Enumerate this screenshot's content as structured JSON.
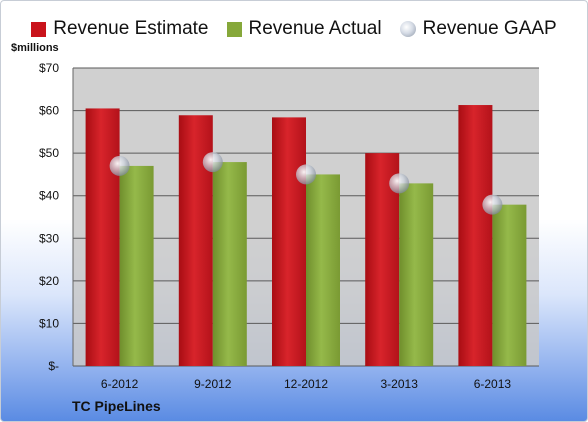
{
  "legend": {
    "estimate": "Revenue Estimate",
    "actual": "Revenue Actual",
    "gaap": "Revenue GAAP"
  },
  "unit_label": "$millions",
  "company": "TC PipeLines",
  "colors": {
    "estimate": "#c9131b",
    "actual": "#86a83a",
    "gaap": "#b9c1ce",
    "plot_background": "#c8c8c8"
  },
  "chart_data": {
    "type": "bar",
    "title": "",
    "xlabel": "",
    "ylabel": "$millions",
    "categories": [
      "6-2012",
      "9-2012",
      "12-2012",
      "3-2013",
      "6-2013"
    ],
    "series": [
      {
        "name": "Revenue Estimate",
        "type": "bar",
        "values": [
          60.5,
          58.9,
          58.4,
          50.0,
          61.3
        ]
      },
      {
        "name": "Revenue Actual",
        "type": "bar",
        "values": [
          47.0,
          47.9,
          45.0,
          42.9,
          37.9
        ]
      },
      {
        "name": "Revenue GAAP",
        "type": "marker",
        "values": [
          47.0,
          47.9,
          45.0,
          42.9,
          37.9
        ]
      }
    ],
    "ylim": [
      0,
      70
    ],
    "yticks": [
      0,
      10,
      20,
      30,
      40,
      50,
      60,
      70
    ],
    "ytick_labels": [
      "$-",
      "$10",
      "$20",
      "$30",
      "$40",
      "$50",
      "$60",
      "$70"
    ],
    "grid": true,
    "legend_position": "top"
  }
}
